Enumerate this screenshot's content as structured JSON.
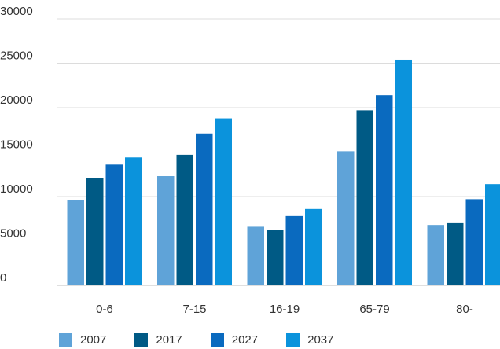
{
  "chart_data": {
    "type": "bar",
    "title": "",
    "xlabel": "",
    "ylabel": "",
    "ylim": [
      0,
      30000
    ],
    "yticks": [
      0,
      5000,
      10000,
      15000,
      20000,
      25000,
      30000
    ],
    "grid": true,
    "legend_position": "bottom-left",
    "categories": [
      "0-6",
      "7-15",
      "16-19",
      "65-79",
      "80-"
    ],
    "series": [
      {
        "name": "2007",
        "color": "#5FA3D8",
        "values": [
          9600,
          12300,
          6600,
          15100,
          6800
        ]
      },
      {
        "name": "2017",
        "color": "#005A85",
        "values": [
          12100,
          14700,
          6200,
          19700,
          7000
        ]
      },
      {
        "name": "2027",
        "color": "#0A6ABF",
        "values": [
          13600,
          17100,
          7800,
          21400,
          9700
        ]
      },
      {
        "name": "2037",
        "color": "#0B93DC",
        "values": [
          14400,
          18800,
          8600,
          25400,
          11400
        ]
      }
    ]
  }
}
